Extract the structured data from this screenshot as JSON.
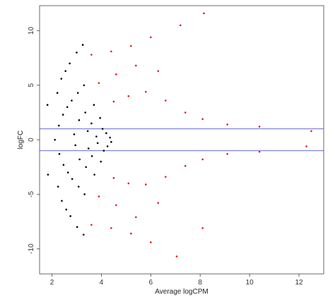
{
  "chart_data": {
    "type": "scatter",
    "title": "",
    "xlabel": "Average logCPM",
    "ylabel": "logFC",
    "xlim": [
      1.5,
      13.0
    ],
    "ylim": [
      -12.3,
      12.3
    ],
    "x_ticks": [
      2,
      4,
      6,
      8,
      10,
      12
    ],
    "x_tick_labels": [
      "2",
      "4",
      "6",
      "8",
      "10",
      "12"
    ],
    "y_ticks": [
      -10,
      -5,
      0,
      5,
      10
    ],
    "y_tick_labels": [
      "-10",
      "-5",
      "0",
      "5",
      "10"
    ],
    "grid": false,
    "legend": "none",
    "reference_lines": [
      {
        "orientation": "horizontal",
        "y": 1,
        "color": "#6f6fd8"
      },
      {
        "orientation": "horizontal",
        "y": -1,
        "color": "#6f6fd8"
      }
    ],
    "series": [
      {
        "color": "#000000",
        "points": [
          [
            1.82,
            3.2
          ],
          [
            1.84,
            -3.2
          ],
          [
            2.12,
            0.0
          ],
          [
            2.22,
            4.3
          ],
          [
            2.25,
            -4.3
          ],
          [
            2.28,
            1.3
          ],
          [
            2.3,
            -1.3
          ],
          [
            2.38,
            5.6
          ],
          [
            2.4,
            -5.6
          ],
          [
            2.45,
            2.3
          ],
          [
            2.47,
            -2.3
          ],
          [
            2.55,
            6.3
          ],
          [
            2.58,
            -6.4
          ],
          [
            2.62,
            3.0
          ],
          [
            2.65,
            -3.0
          ],
          [
            2.72,
            7.0
          ],
          [
            2.75,
            -7.0
          ],
          [
            2.8,
            3.6
          ],
          [
            2.82,
            -3.6
          ],
          [
            2.9,
            0.5
          ],
          [
            2.95,
            -0.5
          ],
          [
            3.0,
            8.0
          ],
          [
            3.02,
            -8.0
          ],
          [
            3.05,
            4.3
          ],
          [
            3.08,
            -4.3
          ],
          [
            3.1,
            1.8
          ],
          [
            3.12,
            -1.8
          ],
          [
            3.25,
            8.7
          ],
          [
            3.28,
            -8.7
          ],
          [
            3.3,
            5.0
          ],
          [
            3.32,
            -5.0
          ],
          [
            3.35,
            2.5
          ],
          [
            3.38,
            -2.5
          ],
          [
            3.45,
            0.8
          ],
          [
            3.48,
            -0.8
          ],
          [
            3.6,
            1.5
          ],
          [
            3.62,
            -1.5
          ],
          [
            3.7,
            3.2
          ],
          [
            3.72,
            -3.2
          ],
          [
            3.8,
            0.3
          ],
          [
            3.85,
            -0.3
          ],
          [
            3.95,
            2.0
          ],
          [
            3.98,
            -2.0
          ],
          [
            4.05,
            1.0
          ],
          [
            4.1,
            -1.0
          ],
          [
            4.2,
            0.6
          ],
          [
            4.25,
            -0.6
          ],
          [
            4.35,
            0.2
          ],
          [
            4.4,
            -0.2
          ]
        ]
      },
      {
        "color": "#e31a1c",
        "points": [
          [
            3.6,
            7.8
          ],
          [
            3.6,
            -7.8
          ],
          [
            4.4,
            8.1
          ],
          [
            4.4,
            -8.1
          ],
          [
            5.2,
            8.6
          ],
          [
            5.2,
            -8.6
          ],
          [
            6.0,
            9.4
          ],
          [
            6.0,
            -9.4
          ],
          [
            7.2,
            10.5
          ],
          [
            8.15,
            11.6
          ],
          [
            8.1,
            -8.1
          ],
          [
            7.05,
            -10.7
          ],
          [
            3.9,
            5.2
          ],
          [
            3.9,
            -5.2
          ],
          [
            4.6,
            6.0
          ],
          [
            4.6,
            -6.0
          ],
          [
            5.4,
            6.8
          ],
          [
            5.4,
            -7.1
          ],
          [
            6.3,
            6.3
          ],
          [
            6.3,
            -5.8
          ],
          [
            4.5,
            3.5
          ],
          [
            4.5,
            -3.5
          ],
          [
            5.1,
            4.0
          ],
          [
            5.1,
            -4.0
          ],
          [
            5.8,
            4.4
          ],
          [
            5.8,
            -4.1
          ],
          [
            6.6,
            3.6
          ],
          [
            6.6,
            -3.4
          ],
          [
            7.4,
            2.5
          ],
          [
            7.4,
            -2.4
          ],
          [
            8.1,
            1.9
          ],
          [
            8.1,
            -1.8
          ],
          [
            9.1,
            1.4
          ],
          [
            9.1,
            -1.3
          ],
          [
            10.4,
            1.2
          ],
          [
            10.4,
            -1.1
          ],
          [
            12.5,
            0.8
          ],
          [
            12.3,
            -0.6
          ]
        ]
      }
    ]
  }
}
